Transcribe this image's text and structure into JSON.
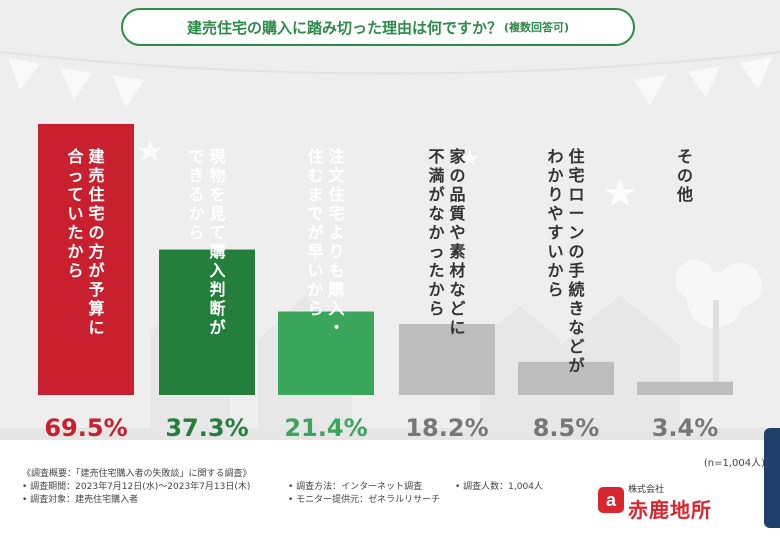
{
  "title": {
    "main": "建売住宅の購入に踏み切った理由は何ですか？",
    "sub": "(複数回答可)"
  },
  "chart_data": {
    "type": "bar",
    "title": "建売住宅の購入に踏み切った理由は何ですか？(複数回答可)",
    "categories": [
      "建売住宅の方が予算に合っていたから",
      "現物を見て購入判断ができるから",
      "注文住宅よりも購入・住むまでが早いから",
      "家の品質や素材などに不満がなかったから",
      "住宅ローンの手続きなどがわかりやすいから",
      "その他"
    ],
    "values": [
      69.5,
      37.3,
      21.4,
      18.2,
      8.5,
      3.4
    ],
    "value_labels": [
      "69.5%",
      "37.3%",
      "21.4%",
      "18.2%",
      "8.5%",
      "3.4%"
    ],
    "label_columns": [
      [
        "建売住宅の方が予算に",
        "合っていたから"
      ],
      [
        "現物を見て購入判断が",
        "できるから"
      ],
      [
        "注文住宅よりも購入・",
        "住むまでが早いから"
      ],
      [
        "家の品質や素材などに",
        "不満がなかったから"
      ],
      [
        "住宅ローンの手続きなどが",
        "わかりやすいから"
      ],
      [
        "その他"
      ]
    ],
    "colors": [
      "#c8202e",
      "#237f3b",
      "#3aa65c",
      "#bdbdbd",
      "#bdbdbd",
      "#bdbdbd"
    ],
    "label_colors": [
      "#ffffff",
      "#ffffff",
      "#ffffff",
      "#333333",
      "#333333",
      "#333333"
    ],
    "value_colors": [
      "#c8202e",
      "#237f3b",
      "#3aa65c",
      "#777777",
      "#777777",
      "#777777"
    ],
    "ylim": [
      0,
      100
    ],
    "sample_note": "(n=1,004人)"
  },
  "survey": {
    "summary": "《調査概要：「建売住宅購入者の失敗談」に関する調査》",
    "period": "• 調査期間：2023年7月12日(水)～2023年7月13日(木)",
    "target": "• 調査対象：建売住宅購入者",
    "method": "• 調査方法：インターネット調査",
    "monitor": "• モニター提供元：ゼネラルリサーチ",
    "count": "• 調査人数：1,004人"
  },
  "logo": {
    "corp": "株式会社",
    "name": "赤鹿地所",
    "mark": "a"
  }
}
